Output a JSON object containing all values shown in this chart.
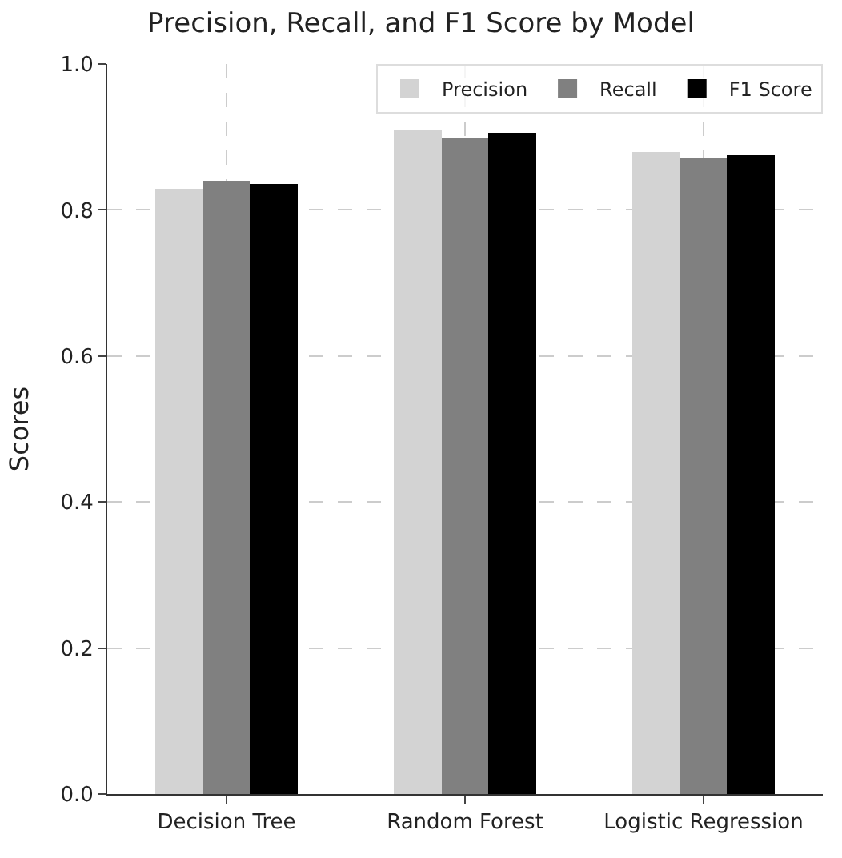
{
  "chart_data": {
    "type": "bar",
    "title": "Precision, Recall, and F1 Score by Model",
    "ylabel": "Scores",
    "categories": [
      "Decision Tree",
      "Random Forest",
      "Logistic Regression"
    ],
    "series": [
      {
        "name": "Precision",
        "color": "#d3d3d3",
        "values": [
          0.83,
          0.91,
          0.88
        ]
      },
      {
        "name": "Recall",
        "color": "#808080",
        "values": [
          0.84,
          0.9,
          0.87
        ]
      },
      {
        "name": "F1 Score",
        "color": "#000000",
        "values": [
          0.835,
          0.905,
          0.875
        ]
      }
    ],
    "ylim": [
      0,
      1.0
    ],
    "yticks": [
      {
        "value": 0,
        "label": "0.0"
      },
      {
        "value": 0.2,
        "label": "0.2"
      },
      {
        "value": 0.4,
        "label": "0.4"
      },
      {
        "value": 0.6,
        "label": "0.6"
      },
      {
        "value": 0.8,
        "label": "0.8"
      },
      {
        "value": 1.0,
        "label": "1.0"
      }
    ],
    "grid": true,
    "legend": "top right"
  }
}
